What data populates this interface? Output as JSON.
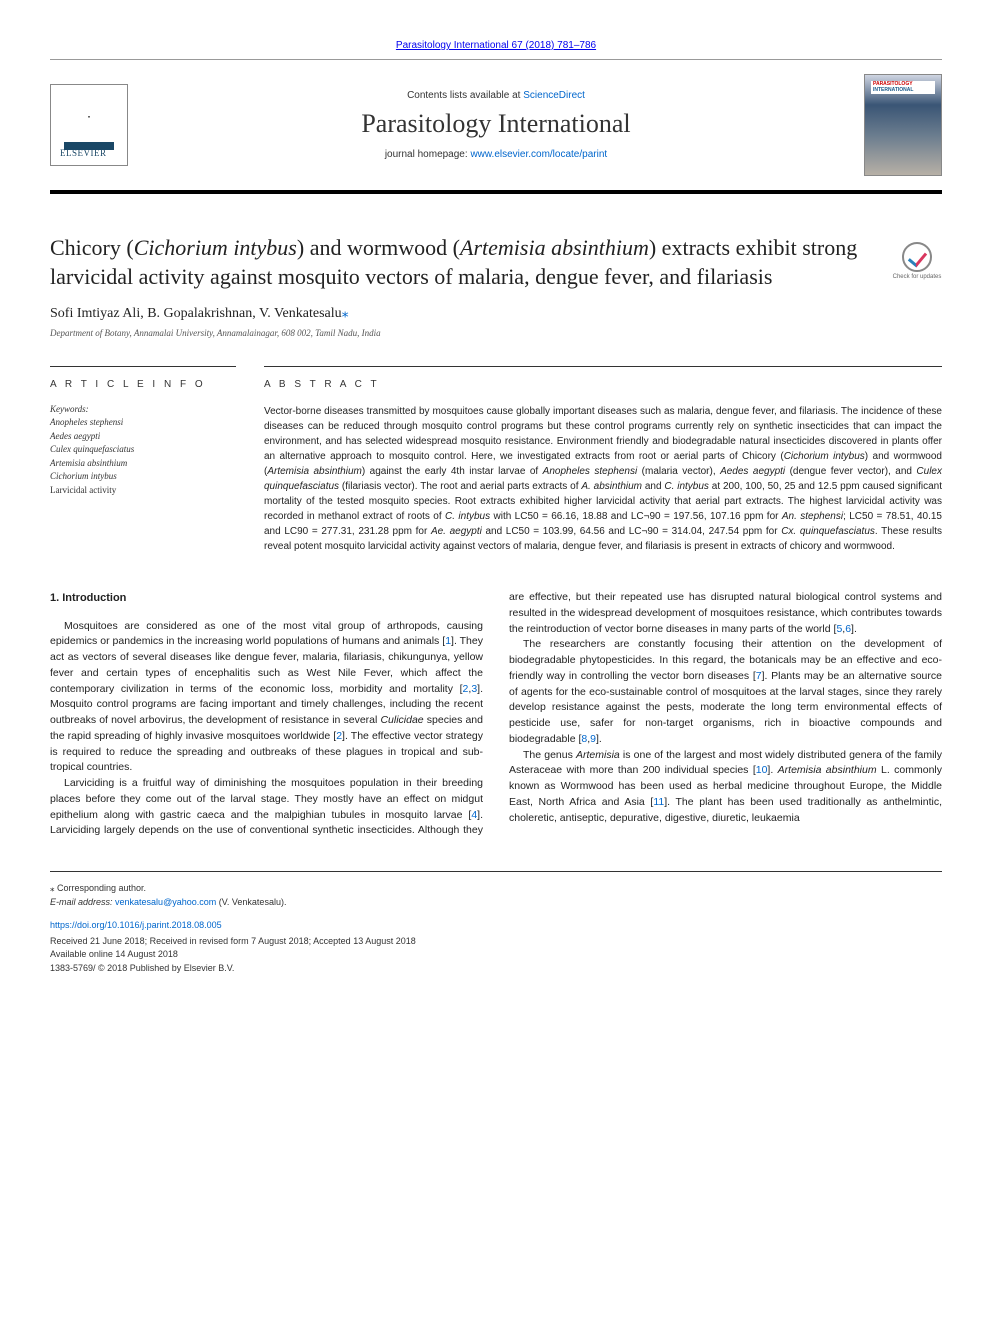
{
  "header": {
    "top_link": "Parasitology International 67 (2018) 781–786",
    "contents_prefix": "Contents lists available at ",
    "contents_link": "ScienceDirect",
    "journal_title": "Parasitology International",
    "homepage_prefix": "journal homepage: ",
    "homepage_link": "www.elsevier.com/locate/parint",
    "cover_label_1": "PARASITOLOGY",
    "cover_label_2": "INTERNATIONAL",
    "elsevier": "ELSEVIER"
  },
  "article": {
    "title_pre": "Chicory (",
    "title_sp1": "Cichorium intybus",
    "title_mid1": ") and wormwood (",
    "title_sp2": "Artemisia absinthium",
    "title_post": ") extracts exhibit strong larvicidal activity against mosquito vectors of malaria, dengue fever, and filariasis",
    "check_updates": "Check for updates",
    "authors": "Sofi Imtiyaz Ali, B. Gopalakrishnan, V. Venkatesalu",
    "author_corr_mark": "⁎",
    "affiliation": "Department of Botany, Annamalai University, Annamalainagar, 608 002, Tamil Nadu, India"
  },
  "info": {
    "label": "A R T I C L E  I N F O",
    "keywords_label": "Keywords:",
    "keywords": [
      {
        "text": "Anopheles stephensi",
        "italic": true
      },
      {
        "text": "Aedes aegypti",
        "italic": true
      },
      {
        "text": "Culex quinquefasciatus",
        "italic": true
      },
      {
        "text": "Artemisia absinthium",
        "italic": true
      },
      {
        "text": "Cichorium intybus",
        "italic": true
      },
      {
        "text": "Larvicidal activity",
        "italic": false
      }
    ]
  },
  "abstract": {
    "label": "A B S T R A C T",
    "text": "Vector-borne diseases transmitted by mosquitoes cause globally important diseases such as malaria, dengue fever, and filariasis. The incidence of these diseases can be reduced through mosquito control programs but these control programs currently rely on synthetic insecticides that can impact the environment, and has selected widespread mosquito resistance. Environment friendly and biodegradable natural insecticides discovered in plants offer an alternative approach to mosquito control. Here, we investigated extracts from root or aerial parts of Chicory (<em>Cichorium intybus</em>) and wormwood (<em>Artemisia absinthium</em>) against the early 4th instar larvae of <em>Anopheles stephensi</em> (malaria vector), <em>Aedes aegypti</em> (dengue fever vector), and <em>Culex quinquefasciatus</em> (filariasis vector). The root and aerial parts extracts of <em>A. absinthium</em> and <em>C. intybus</em> at 200, 100, 50, 25 and 12.5 ppm caused significant mortality of the tested mosquito species. Root extracts exhibited higher larvicidal activity that aerial part extracts. The highest larvicidal activity was recorded in methanol extract of roots of <em>C. intybus</em> with LC50 = 66.16, 18.88 and LC¬90 = 197.56, 107.16 ppm for <em>An. stephensi</em>; LC50 = 78.51, 40.15 and LC90 = 277.31, 231.28 ppm for <em>Ae. aegypti</em> and LC50 = 103.99, 64.56 and LC¬90 = 314.04, 247.54 ppm for <em>Cx. quinquefasciatus</em>. These results reveal potent mosquito larvicidal activity against vectors of malaria, dengue fever, and filariasis is present in extracts of chicory and wormwood."
  },
  "body": {
    "heading": "1. Introduction",
    "p1": "Mosquitoes are considered as one of the most vital group of arthropods, causing epidemics or pandemics in the increasing world populations of humans and animals [<a class='ref-link' href='#'>1</a>]. They act as vectors of several diseases like dengue fever, malaria, filariasis, chikungunya, yellow fever and certain types of encephalitis such as West Nile Fever, which affect the contemporary civilization in terms of the economic loss, morbidity and mortality [<a class='ref-link' href='#'>2</a>,<a class='ref-link' href='#'>3</a>]. Mosquito control programs are facing important and timely challenges, including the recent outbreaks of novel arbovirus, the development of resistance in several <em>Culicidae</em> species and the rapid spreading of highly invasive mosquitoes worldwide [<a class='ref-link' href='#'>2</a>]. The effective vector strategy is required to reduce the spreading and outbreaks of these plagues in tropical and sub-tropical countries.",
    "p2": "Larviciding is a fruitful way of diminishing the mosquitoes population in their breeding places before they come out of the larval stage. They mostly have an effect on midgut epithelium along with gastric caeca and the malpighian tubules in mosquito larvae [<a class='ref-link' href='#'>4</a>]. Larviciding largely depends on the use of conventional synthetic insecticides. Although they are effective, but their repeated use has disrupted natural biological control systems and resulted in the widespread development of mosquitoes resistance, which contributes towards the reintroduction of vector borne diseases in many parts of the world [<a class='ref-link' href='#'>5</a>,<a class='ref-link' href='#'>6</a>].",
    "p3": "The researchers are constantly focusing their attention on the development of biodegradable phytopesticides. In this regard, the botanicals may be an effective and eco-friendly way in controlling the vector born diseases [<a class='ref-link' href='#'>7</a>]. Plants may be an alternative source of agents for the eco-sustainable control of mosquitoes at the larval stages, since they rarely develop resistance against the pests, moderate the long term environmental effects of pesticide use, safer for non-target organisms, rich in bioactive compounds and biodegradable [<a class='ref-link' href='#'>8</a>,<a class='ref-link' href='#'>9</a>].",
    "p4": "The genus <em>Artemisia</em> is one of the largest and most widely distributed genera of the family Asteraceae with more than 200 individual species [<a class='ref-link' href='#'>10</a>]. <em>Artemisia absinthium</em> L. commonly known as Wormwood has been used as herbal medicine throughout Europe, the Middle East, North Africa and Asia [<a class='ref-link' href='#'>11</a>]. The plant has been used traditionally as anthelmintic, choleretic, antiseptic, depurative, digestive, diuretic, leukaemia"
  },
  "footer": {
    "corr": "⁎ Corresponding author.",
    "email_label": "E-mail address: ",
    "email": "venkatesalu@yahoo.com",
    "email_author": " (V. Venkatesalu).",
    "doi": "https://doi.org/10.1016/j.parint.2018.08.005",
    "dates": "Received 21 June 2018; Received in revised form 7 August 2018; Accepted 13 August 2018",
    "available": "Available online 14 August 2018",
    "issn": "1383-5769/ © 2018 Published by Elsevier B.V."
  },
  "colors": {
    "link": "#0066cc",
    "text": "#1a1a1a",
    "border": "#333333"
  }
}
